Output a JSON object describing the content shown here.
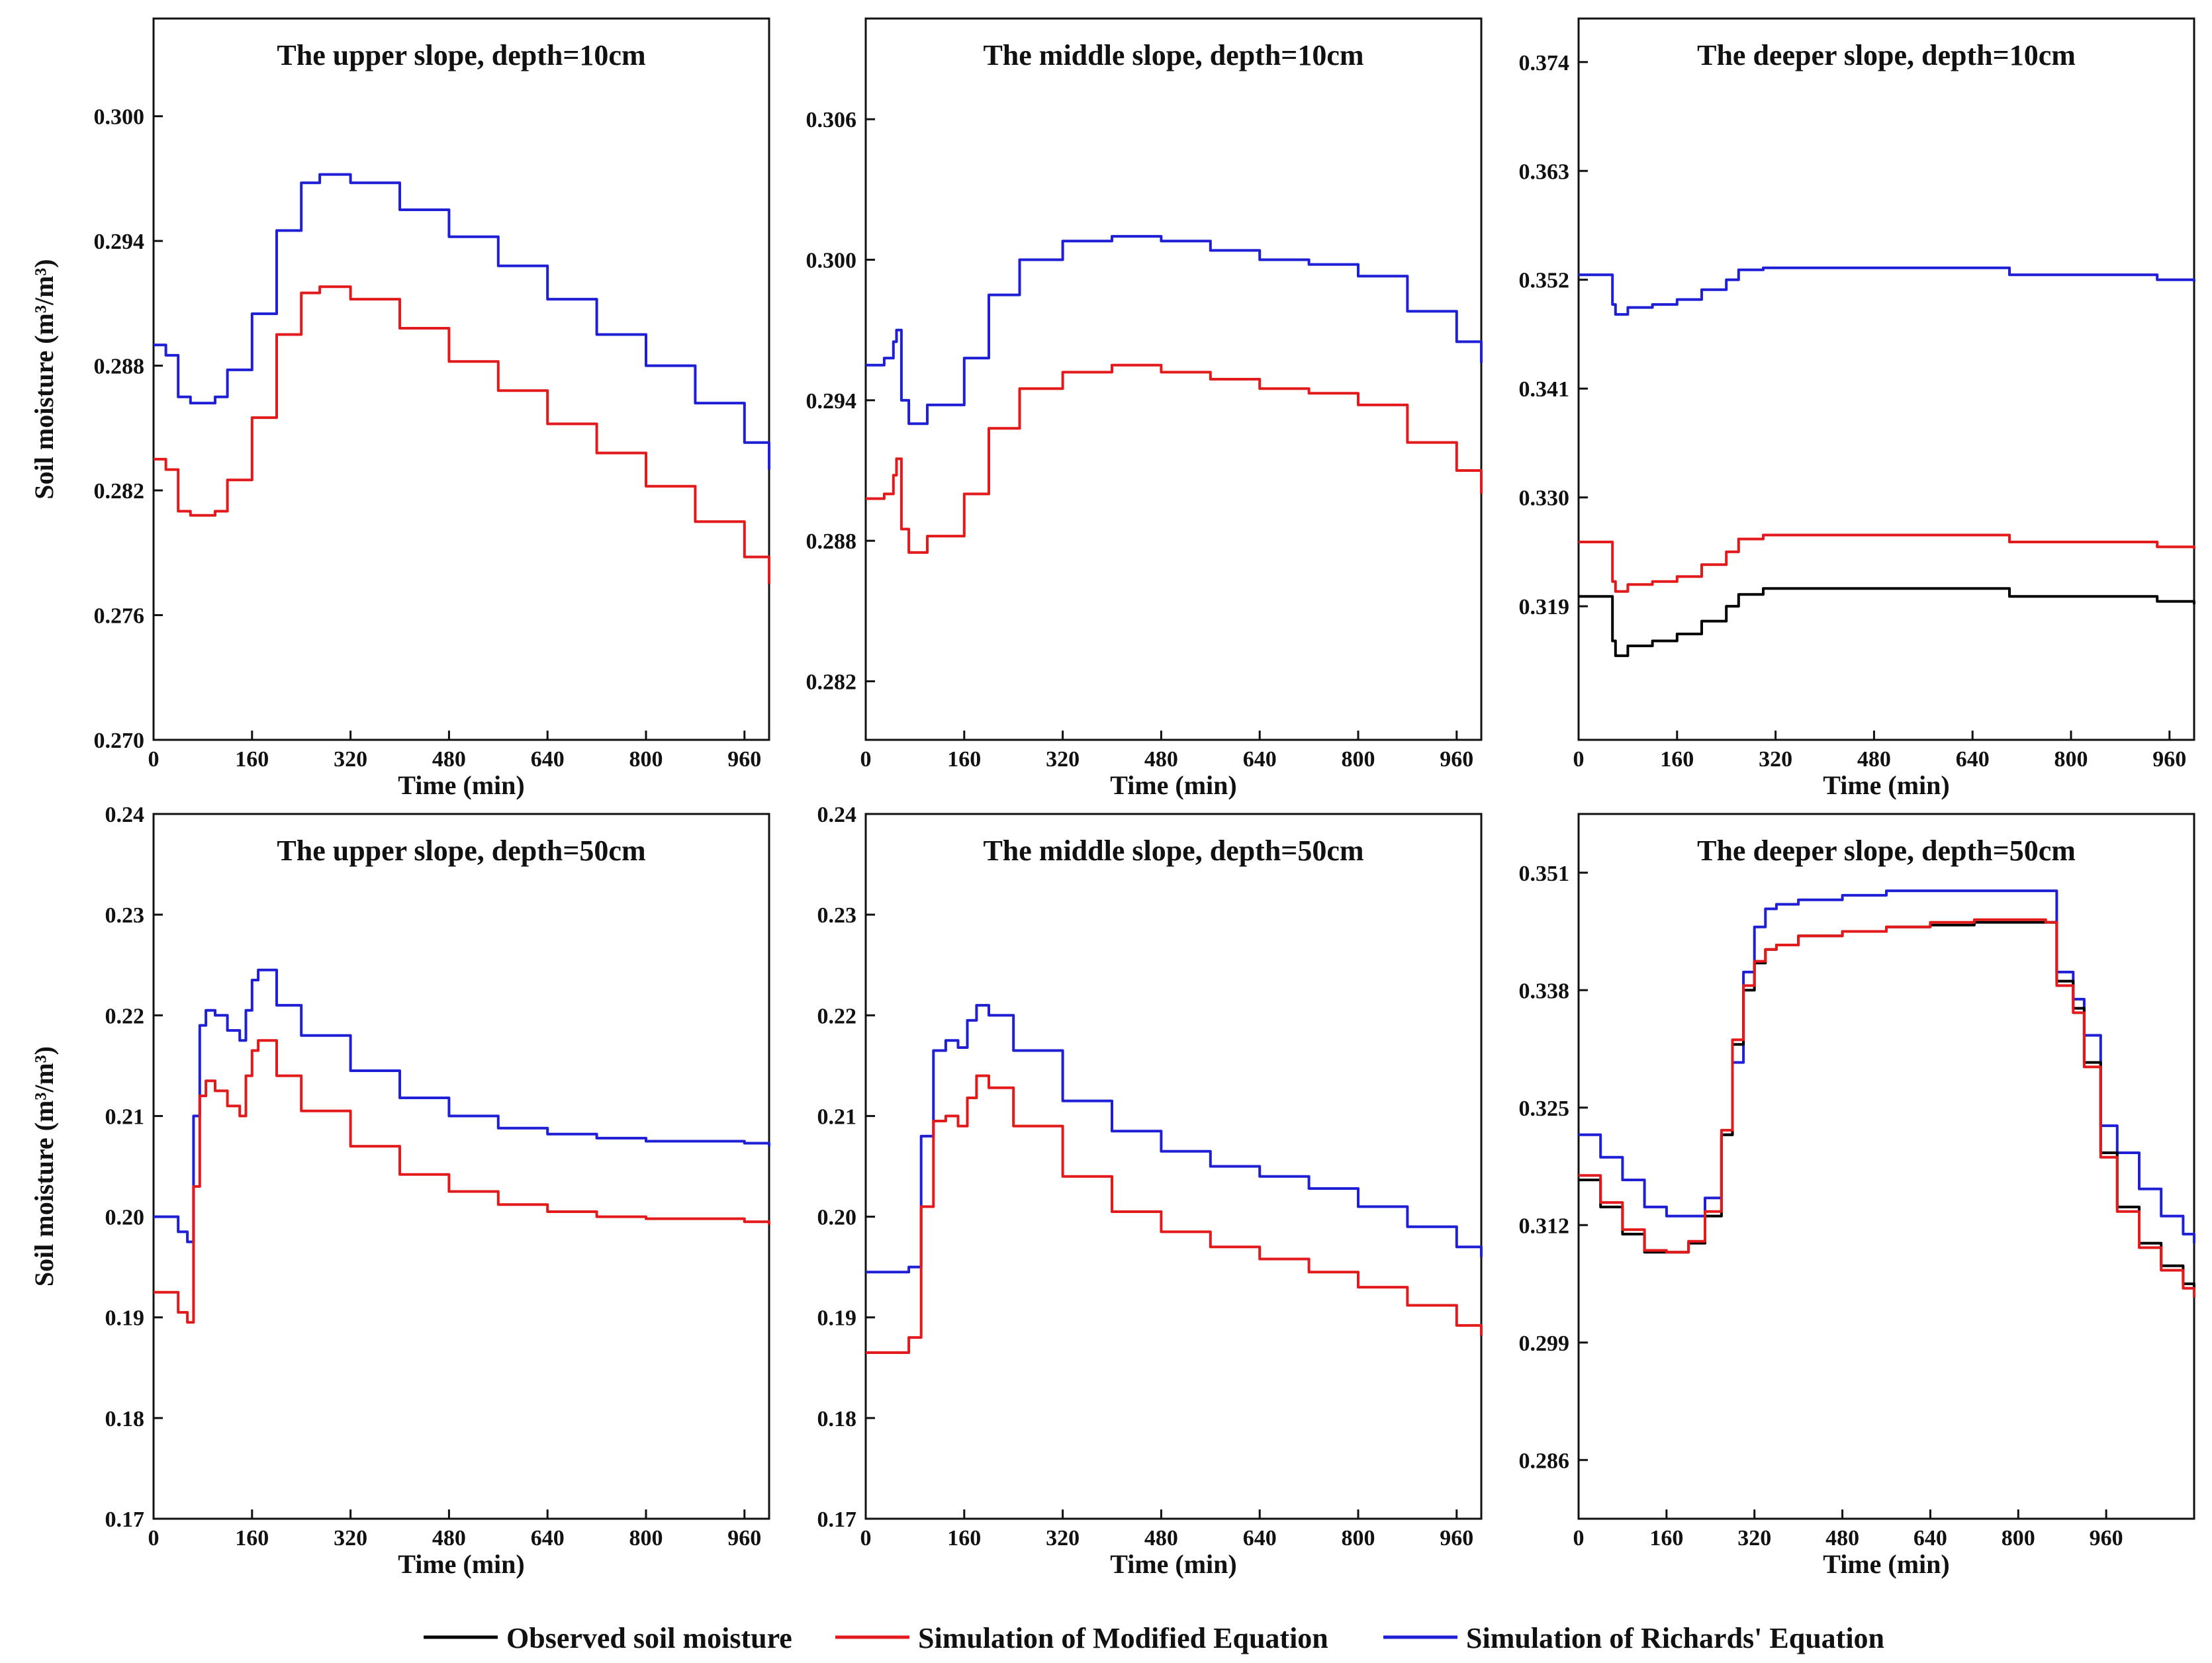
{
  "figure": {
    "legend": [
      {
        "label": "Observed soil moisture",
        "color": "#000000"
      },
      {
        "label": "Simulation of Modified Equation",
        "color": "#e31a1c"
      },
      {
        "label": "Simulation of Richards' Equation",
        "color": "#1f1fd6"
      }
    ]
  },
  "chart_data": [
    {
      "type": "line",
      "title": "The upper slope, depth=10cm",
      "xlabel": "Time (min)",
      "ylabel": "Soil moisture (m³/m³)",
      "xlim": [
        0,
        1000
      ],
      "ylim": [
        0.27,
        0.3047
      ],
      "xticks": [
        0,
        160,
        320,
        480,
        640,
        800,
        960
      ],
      "yticks": [
        0.27,
        0.276,
        0.282,
        0.288,
        0.294,
        0.3
      ],
      "ytick_labels": [
        "0.270",
        "0.276",
        "0.282",
        "0.288",
        "0.294",
        "0.300"
      ],
      "series": [
        {
          "name": "Simulation of Richards' Equation",
          "color": "#1f1fd6",
          "x": [
            0,
            20,
            40,
            60,
            100,
            120,
            160,
            200,
            240,
            270,
            320,
            400,
            480,
            560,
            640,
            720,
            800,
            880,
            960,
            1000
          ],
          "y": [
            0.289,
            0.2885,
            0.2865,
            0.2862,
            0.2865,
            0.2878,
            0.2905,
            0.2945,
            0.2968,
            0.2972,
            0.2968,
            0.2955,
            0.2942,
            0.2928,
            0.2912,
            0.2895,
            0.288,
            0.2862,
            0.2843,
            0.283
          ]
        },
        {
          "name": "Simulation of Modified Equation",
          "color": "#e31a1c",
          "x": [
            0,
            20,
            40,
            60,
            100,
            120,
            160,
            200,
            240,
            270,
            320,
            400,
            480,
            560,
            640,
            720,
            800,
            880,
            960,
            1000
          ],
          "y": [
            0.2835,
            0.283,
            0.281,
            0.2808,
            0.281,
            0.2825,
            0.2855,
            0.2895,
            0.2915,
            0.2918,
            0.2912,
            0.2898,
            0.2882,
            0.2868,
            0.2852,
            0.2838,
            0.2822,
            0.2805,
            0.2788,
            0.2775
          ]
        }
      ]
    },
    {
      "type": "line",
      "title": "The middle slope, depth=10cm",
      "xlabel": "Time (min)",
      "ylabel": "",
      "xlim": [
        0,
        1000
      ],
      "ylim": [
        0.2795,
        0.3103
      ],
      "xticks": [
        0,
        160,
        320,
        480,
        640,
        800,
        960
      ],
      "yticks": [
        0.282,
        0.288,
        0.294,
        0.3,
        0.306
      ],
      "ytick_labels": [
        "0.282",
        "0.288",
        "0.294",
        "0.300",
        "0.306"
      ],
      "series": [
        {
          "name": "Simulation of Richards' Equation",
          "color": "#1f1fd6",
          "x": [
            0,
            30,
            45,
            50,
            58,
            70,
            100,
            160,
            200,
            250,
            320,
            400,
            480,
            560,
            640,
            720,
            800,
            880,
            960,
            1000
          ],
          "y": [
            0.2955,
            0.2958,
            0.2965,
            0.297,
            0.294,
            0.293,
            0.2938,
            0.2958,
            0.2985,
            0.3,
            0.3008,
            0.301,
            0.3008,
            0.3004,
            0.3,
            0.2998,
            0.2993,
            0.2978,
            0.2965,
            0.2956
          ]
        },
        {
          "name": "Simulation of Modified Equation",
          "color": "#e31a1c",
          "x": [
            0,
            30,
            45,
            50,
            58,
            70,
            100,
            160,
            200,
            250,
            320,
            400,
            480,
            560,
            640,
            720,
            800,
            880,
            960,
            1000
          ],
          "y": [
            0.2898,
            0.29,
            0.2908,
            0.2915,
            0.2885,
            0.2875,
            0.2882,
            0.29,
            0.2928,
            0.2945,
            0.2952,
            0.2955,
            0.2952,
            0.2949,
            0.2945,
            0.2943,
            0.2938,
            0.2922,
            0.291,
            0.29
          ]
        }
      ]
    },
    {
      "type": "line",
      "title": "The deeper slope, depth=10cm",
      "xlabel": "Time (min)",
      "ylabel": "",
      "xlim": [
        0,
        1000
      ],
      "ylim": [
        0.3055,
        0.3784
      ],
      "xticks": [
        0,
        160,
        320,
        480,
        640,
        800,
        960
      ],
      "yticks": [
        0.319,
        0.33,
        0.341,
        0.352,
        0.363,
        0.374
      ],
      "ytick_labels": [
        "0.319",
        "0.330",
        "0.341",
        "0.352",
        "0.363",
        "0.374"
      ],
      "series": [
        {
          "name": "Simulation of Richards' Equation",
          "color": "#1f1fd6",
          "x": [
            0,
            40,
            55,
            60,
            80,
            120,
            160,
            200,
            240,
            260,
            300,
            400,
            500,
            600,
            680,
            700,
            800,
            900,
            940,
            1000
          ],
          "y": [
            0.3525,
            0.3525,
            0.3495,
            0.3485,
            0.3492,
            0.3495,
            0.35,
            0.351,
            0.352,
            0.353,
            0.3532,
            0.3532,
            0.3532,
            0.3532,
            0.3532,
            0.3525,
            0.3525,
            0.3525,
            0.352,
            0.3518
          ]
        },
        {
          "name": "Simulation of Modified Equation",
          "color": "#e31a1c",
          "x": [
            0,
            40,
            55,
            60,
            80,
            120,
            160,
            200,
            240,
            260,
            300,
            400,
            500,
            600,
            680,
            700,
            800,
            900,
            940,
            1000
          ],
          "y": [
            0.3255,
            0.3255,
            0.3215,
            0.3205,
            0.3212,
            0.3215,
            0.322,
            0.3232,
            0.3245,
            0.3258,
            0.3262,
            0.3262,
            0.3262,
            0.3262,
            0.3262,
            0.3255,
            0.3255,
            0.3255,
            0.325,
            0.3248
          ]
        },
        {
          "name": "Observed soil moisture",
          "color": "#000000",
          "x": [
            0,
            40,
            55,
            60,
            80,
            120,
            160,
            200,
            240,
            260,
            300,
            400,
            500,
            600,
            680,
            700,
            800,
            900,
            940,
            1000
          ],
          "y": [
            0.32,
            0.32,
            0.3155,
            0.314,
            0.315,
            0.3155,
            0.3162,
            0.3175,
            0.319,
            0.3202,
            0.3208,
            0.3208,
            0.3208,
            0.3208,
            0.3208,
            0.32,
            0.32,
            0.32,
            0.3195,
            0.3192
          ]
        }
      ]
    },
    {
      "type": "line",
      "title": "The upper slope, depth=50cm",
      "xlabel": "Time (min)",
      "ylabel": "Soil moisture (m³/m³)",
      "xlim": [
        0,
        1000
      ],
      "ylim": [
        0.17,
        0.24
      ],
      "xticks": [
        0,
        160,
        320,
        480,
        640,
        800,
        960
      ],
      "yticks": [
        0.17,
        0.18,
        0.19,
        0.2,
        0.21,
        0.22,
        0.23,
        0.24
      ],
      "ytick_labels": [
        "0.17",
        "0.18",
        "0.19",
        "0.20",
        "0.21",
        "0.22",
        "0.23",
        "0.24"
      ],
      "series": [
        {
          "name": "Simulation of Richards' Equation",
          "color": "#1f1fd6",
          "x": [
            0,
            20,
            40,
            55,
            65,
            75,
            85,
            100,
            120,
            140,
            150,
            160,
            170,
            200,
            240,
            320,
            400,
            480,
            560,
            640,
            720,
            800,
            880,
            960,
            1000
          ],
          "y": [
            0.2,
            0.2,
            0.1985,
            0.1975,
            0.21,
            0.219,
            0.2205,
            0.22,
            0.2185,
            0.2175,
            0.2205,
            0.2235,
            0.2245,
            0.221,
            0.218,
            0.2145,
            0.2118,
            0.21,
            0.2088,
            0.2082,
            0.2078,
            0.2075,
            0.2075,
            0.2073,
            0.207
          ]
        },
        {
          "name": "Simulation of Modified Equation",
          "color": "#e31a1c",
          "x": [
            0,
            20,
            40,
            55,
            65,
            75,
            85,
            100,
            120,
            140,
            150,
            160,
            170,
            200,
            240,
            320,
            400,
            480,
            560,
            640,
            720,
            800,
            880,
            960,
            1000
          ],
          "y": [
            0.1925,
            0.1925,
            0.1905,
            0.1895,
            0.203,
            0.212,
            0.2135,
            0.2125,
            0.211,
            0.21,
            0.214,
            0.2165,
            0.2175,
            0.214,
            0.2105,
            0.207,
            0.2042,
            0.2025,
            0.2012,
            0.2005,
            0.2,
            0.1998,
            0.1998,
            0.1995,
            0.1992
          ]
        }
      ]
    },
    {
      "type": "line",
      "title": "The middle slope, depth=50cm",
      "xlabel": "Time (min)",
      "ylabel": "",
      "xlim": [
        0,
        1000
      ],
      "ylim": [
        0.17,
        0.24
      ],
      "xticks": [
        0,
        160,
        320,
        480,
        640,
        800,
        960
      ],
      "yticks": [
        0.17,
        0.18,
        0.19,
        0.2,
        0.21,
        0.22,
        0.23,
        0.24
      ],
      "ytick_labels": [
        "0.17",
        "0.18",
        "0.19",
        "0.20",
        "0.21",
        "0.22",
        "0.23",
        "0.24"
      ],
      "series": [
        {
          "name": "Simulation of Richards' Equation",
          "color": "#1f1fd6",
          "x": [
            0,
            50,
            70,
            90,
            110,
            130,
            150,
            165,
            180,
            200,
            240,
            320,
            400,
            480,
            560,
            640,
            720,
            800,
            880,
            960,
            1000
          ],
          "y": [
            0.1945,
            0.1945,
            0.195,
            0.208,
            0.2165,
            0.2175,
            0.2168,
            0.2195,
            0.221,
            0.22,
            0.2165,
            0.2115,
            0.2085,
            0.2065,
            0.205,
            0.204,
            0.2028,
            0.201,
            0.199,
            0.197,
            0.196
          ]
        },
        {
          "name": "Simulation of Modified Equation",
          "color": "#e31a1c",
          "x": [
            0,
            50,
            70,
            90,
            110,
            130,
            150,
            165,
            180,
            200,
            240,
            320,
            400,
            480,
            560,
            640,
            720,
            800,
            880,
            960,
            1000
          ],
          "y": [
            0.1865,
            0.1865,
            0.188,
            0.201,
            0.2095,
            0.21,
            0.209,
            0.2118,
            0.214,
            0.2128,
            0.209,
            0.204,
            0.2005,
            0.1985,
            0.197,
            0.1958,
            0.1945,
            0.193,
            0.1912,
            0.1892,
            0.1882
          ]
        }
      ]
    },
    {
      "type": "line",
      "title": "The deeper slope, depth=50cm",
      "xlabel": "Time (min)",
      "ylabel": "",
      "xlim": [
        0,
        1120
      ],
      "ylim": [
        0.2795,
        0.3575
      ],
      "xticks": [
        0,
        160,
        320,
        480,
        640,
        800,
        960
      ],
      "yticks": [
        0.286,
        0.299,
        0.312,
        0.325,
        0.338,
        0.351
      ],
      "ytick_labels": [
        "0.286",
        "0.299",
        "0.312",
        "0.325",
        "0.338",
        "0.351"
      ],
      "series": [
        {
          "name": "Simulation of Richards' Equation",
          "color": "#1f1fd6",
          "x": [
            0,
            40,
            80,
            120,
            160,
            200,
            230,
            260,
            280,
            300,
            320,
            340,
            360,
            400,
            480,
            560,
            640,
            720,
            800,
            850,
            870,
            900,
            920,
            950,
            980,
            1020,
            1060,
            1100,
            1120
          ],
          "y": [
            0.322,
            0.3195,
            0.317,
            0.314,
            0.313,
            0.313,
            0.315,
            0.322,
            0.33,
            0.34,
            0.345,
            0.347,
            0.3475,
            0.348,
            0.3485,
            0.349,
            0.349,
            0.349,
            0.349,
            0.349,
            0.34,
            0.337,
            0.333,
            0.323,
            0.32,
            0.316,
            0.313,
            0.311,
            0.31
          ]
        },
        {
          "name": "Observed soil moisture",
          "color": "#000000",
          "x": [
            0,
            40,
            80,
            120,
            160,
            200,
            230,
            260,
            280,
            300,
            320,
            340,
            360,
            400,
            480,
            560,
            640,
            720,
            800,
            850,
            870,
            900,
            920,
            950,
            980,
            1020,
            1060,
            1100,
            1120
          ],
          "y": [
            0.317,
            0.314,
            0.311,
            0.309,
            0.309,
            0.31,
            0.313,
            0.322,
            0.332,
            0.338,
            0.341,
            0.3425,
            0.343,
            0.344,
            0.3445,
            0.345,
            0.3452,
            0.3455,
            0.3455,
            0.3455,
            0.339,
            0.336,
            0.33,
            0.32,
            0.314,
            0.31,
            0.3075,
            0.3055,
            0.3045
          ]
        },
        {
          "name": "Simulation of Modified Equation",
          "color": "#e31a1c",
          "x": [
            0,
            40,
            80,
            120,
            160,
            200,
            230,
            260,
            280,
            300,
            320,
            340,
            360,
            400,
            480,
            560,
            640,
            720,
            800,
            850,
            870,
            900,
            920,
            950,
            980,
            1020,
            1060,
            1100,
            1120
          ],
          "y": [
            0.3175,
            0.3145,
            0.3115,
            0.3092,
            0.309,
            0.3102,
            0.3135,
            0.3225,
            0.3325,
            0.3385,
            0.3412,
            0.3425,
            0.343,
            0.344,
            0.3445,
            0.345,
            0.3455,
            0.3458,
            0.3458,
            0.3455,
            0.3385,
            0.3355,
            0.3295,
            0.3195,
            0.3135,
            0.3095,
            0.307,
            0.305,
            0.304
          ]
        }
      ]
    }
  ]
}
